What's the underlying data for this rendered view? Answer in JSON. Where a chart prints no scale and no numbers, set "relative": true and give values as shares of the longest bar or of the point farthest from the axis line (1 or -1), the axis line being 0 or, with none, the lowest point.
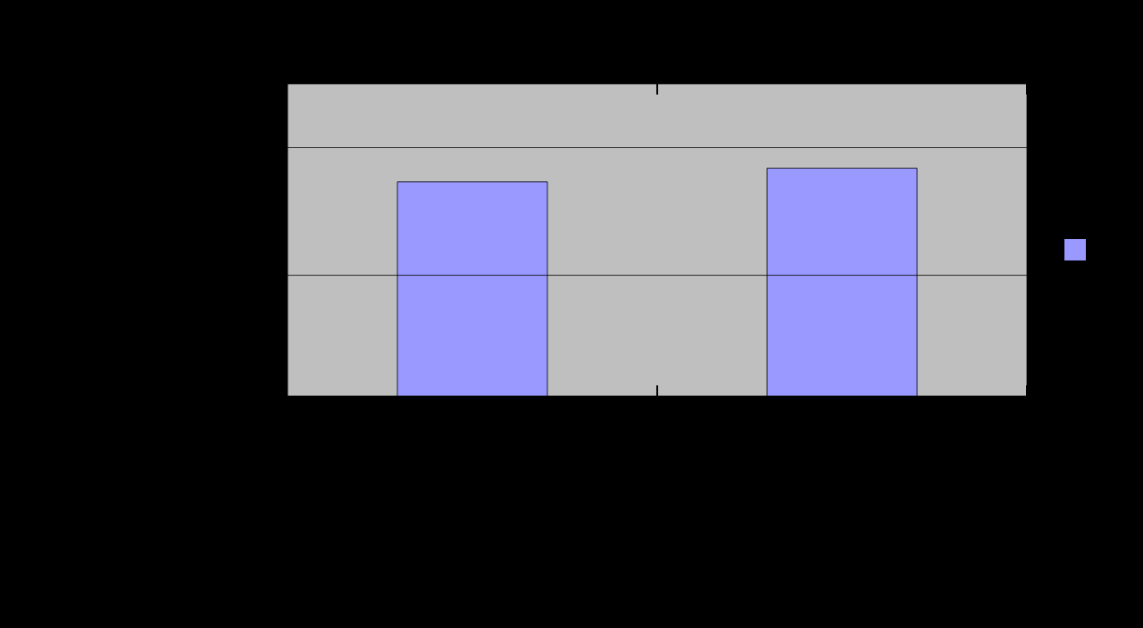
{
  "chart_data": {
    "type": "bar",
    "relative": true,
    "categories": [
      null,
      null
    ],
    "series": [
      {
        "color": "#9999ff",
        "values": [
          0.94,
          1
        ]
      }
    ],
    "ref_lines": [
      {
        "axis": "y",
        "value": 0.53,
        "color": "#000000"
      },
      {
        "axis": "y",
        "value": 1.09,
        "color": "#000000"
      }
    ]
  }
}
